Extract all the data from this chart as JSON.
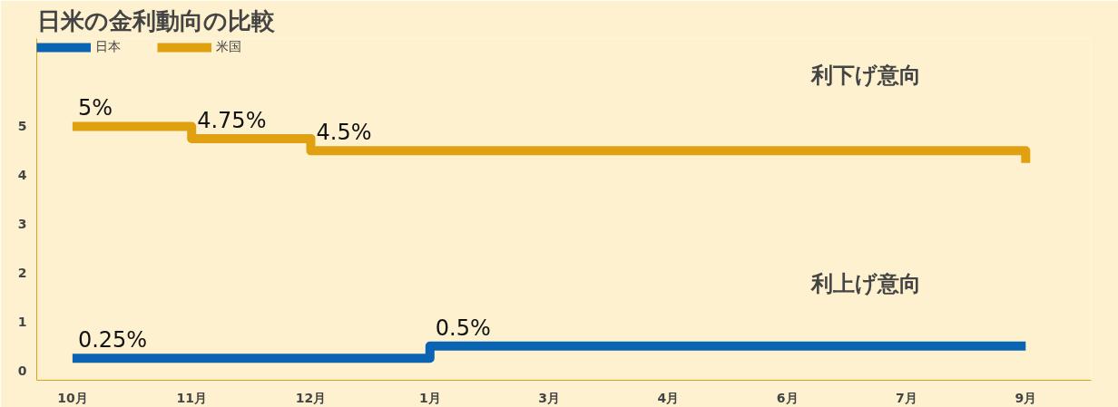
{
  "chart_data": {
    "type": "step",
    "title": "日米の金利動向の比較",
    "categories": [
      "10月",
      "11月",
      "12月",
      "1月",
      "3月",
      "4月",
      "6月",
      "7月",
      "9月"
    ],
    "series": [
      {
        "name": "日本",
        "color": "#0a64b4",
        "values": [
          0.25,
          0.25,
          0.25,
          0.5,
          0.5,
          0.5,
          0.5,
          0.5,
          0.5
        ],
        "value_labels": [
          "0.25%",
          null,
          null,
          "0.5%",
          null,
          null,
          null,
          null,
          null
        ]
      },
      {
        "name": "米国",
        "color": "#e0a010",
        "values": [
          5,
          4.75,
          4.5,
          4.5,
          4.5,
          4.5,
          4.5,
          4.5,
          4.25
        ],
        "value_labels": [
          "5%",
          "4.75%",
          "4.5%",
          null,
          null,
          null,
          null,
          null,
          null
        ]
      }
    ],
    "ylim": [
      -0.2,
      6.8
    ],
    "yticks": [
      0,
      1,
      2,
      3,
      4,
      5
    ],
    "grid": false,
    "legend": "top left",
    "line_style": "solid",
    "annotations": [
      "利下げ意向",
      "利上げ意向"
    ]
  }
}
